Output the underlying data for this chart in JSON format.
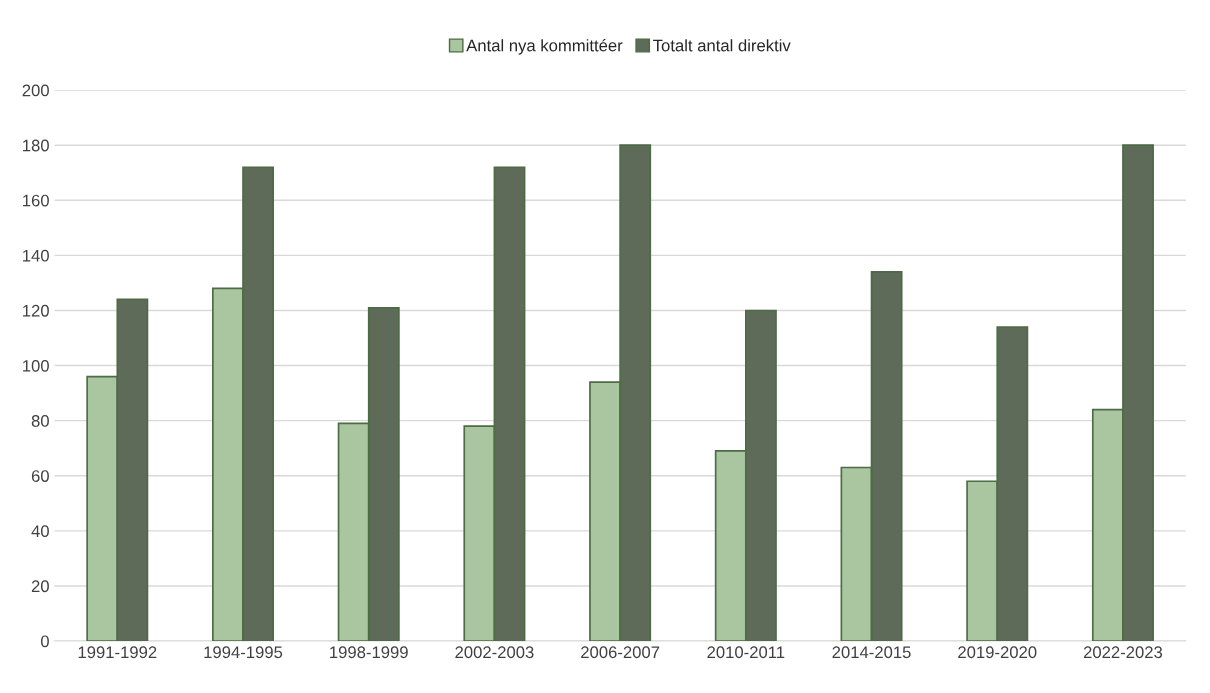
{
  "chart_data": {
    "type": "bar",
    "categories": [
      "1991-1992",
      "1994-1995",
      "1998-1999",
      "2002-2003",
      "2006-2007",
      "2010-2011",
      "2014-2015",
      "2019-2020",
      "2022-2023"
    ],
    "series": [
      {
        "name": "Antal nya kommittéer",
        "color": "#a9c6a0",
        "values": [
          96,
          128,
          79,
          78,
          94,
          69,
          63,
          58,
          84
        ]
      },
      {
        "name": "Totalt antal direktiv",
        "color": "#5d6b58",
        "values": [
          124,
          172,
          121,
          172,
          180,
          120,
          134,
          114,
          180
        ]
      }
    ],
    "ylim": [
      0,
      200
    ],
    "yticks": [
      0,
      20,
      40,
      60,
      80,
      100,
      120,
      140,
      160,
      180,
      200
    ],
    "grid": "y",
    "legend": "top"
  }
}
